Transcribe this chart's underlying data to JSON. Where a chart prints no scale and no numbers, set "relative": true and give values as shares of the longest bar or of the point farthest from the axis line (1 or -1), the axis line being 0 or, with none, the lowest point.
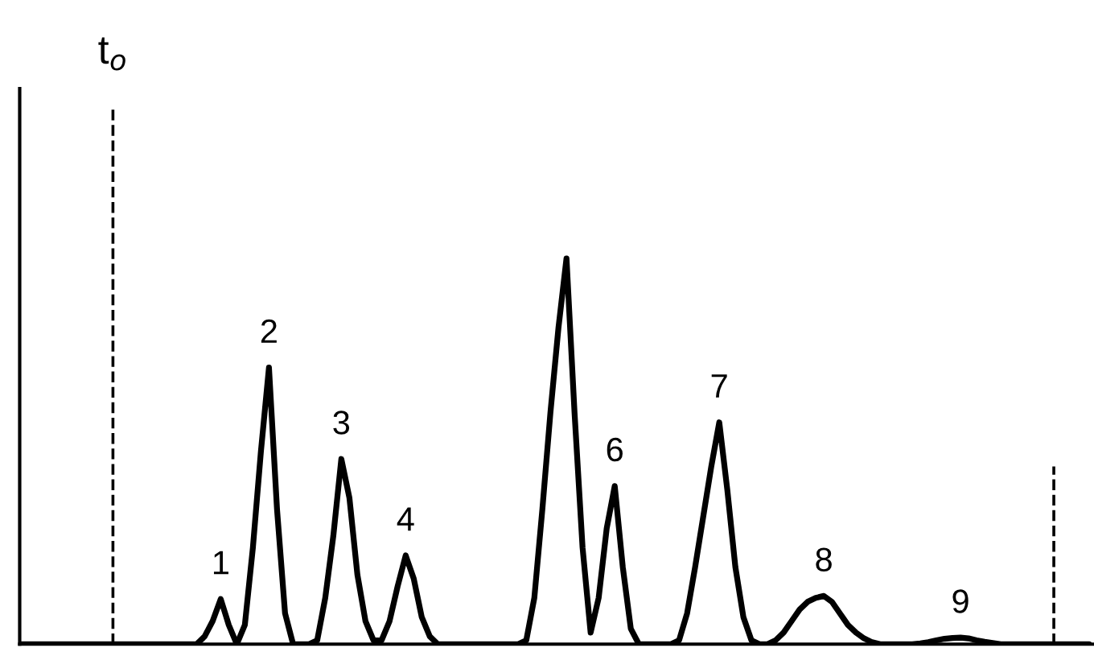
{
  "chart_data": {
    "type": "line",
    "relative": true,
    "legend": false,
    "marker": "none",
    "line_style": "solid",
    "categories": [
      null,
      null,
      null,
      null,
      null,
      null,
      null,
      null,
      null,
      null,
      null,
      null,
      null,
      null,
      null,
      null,
      null,
      null,
      null,
      null,
      null,
      null,
      null,
      null,
      null,
      null,
      null,
      null,
      null,
      null,
      null,
      null,
      null,
      null,
      null,
      null,
      null,
      null,
      null,
      null,
      null,
      null,
      null,
      null,
      null,
      null,
      null,
      null,
      null,
      null,
      null,
      null,
      null,
      null,
      null,
      null,
      null,
      null,
      null,
      null,
      null,
      null,
      null,
      null,
      null,
      null,
      null,
      null,
      null,
      null,
      null,
      null,
      null,
      null,
      null,
      null,
      null,
      null,
      null,
      null,
      null,
      null,
      null,
      null,
      null,
      null,
      null,
      null,
      null,
      null,
      null,
      null,
      null,
      null,
      null,
      null,
      null,
      null,
      null,
      null,
      null,
      null,
      null,
      null,
      null,
      null,
      null,
      null,
      null,
      null,
      null,
      null,
      null,
      null,
      null,
      null,
      null,
      null,
      null,
      null,
      null,
      null,
      null,
      null,
      null,
      null,
      null,
      null,
      null,
      null,
      null,
      null,
      null,
      null
    ],
    "series": [
      {
        "color": "#000000",
        "values": [
          0,
          0,
          0,
          0,
          0,
          0,
          0,
          0,
          0,
          0,
          0,
          0,
          0,
          0,
          0,
          0,
          0,
          0,
          0,
          0,
          0,
          0,
          0,
          0.02,
          0.06,
          0.117,
          0.05,
          0,
          0.05,
          0.25,
          0.5,
          0.717,
          0.35,
          0.08,
          0,
          0,
          0,
          0.01,
          0.12,
          0.28,
          0.48,
          0.38,
          0.18,
          0.06,
          0.01,
          0.01,
          0.06,
          0.15,
          0.23,
          0.17,
          0.07,
          0.02,
          0,
          0,
          0,
          0,
          0,
          0,
          0,
          0,
          0,
          0,
          0,
          0.01,
          0.12,
          0.35,
          0.6,
          0.82,
          1.0,
          0.6,
          0.25,
          0.03,
          0.12,
          0.3,
          0.41,
          0.2,
          0.04,
          0,
          0,
          0,
          0,
          0,
          0.01,
          0.08,
          0.2,
          0.33,
          0.46,
          0.575,
          0.4,
          0.2,
          0.07,
          0.01,
          0,
          0,
          0.01,
          0.03,
          0.06,
          0.09,
          0.11,
          0.12,
          0.125,
          0.11,
          0.08,
          0.05,
          0.03,
          0.015,
          0.005,
          0,
          0,
          0,
          0,
          0,
          0.002,
          0.005,
          0.01,
          0.014,
          0.016,
          0.017,
          0.015,
          0.01,
          0.006,
          0.003,
          0,
          0,
          0,
          0,
          0,
          0,
          0,
          0,
          0,
          0,
          0,
          0
        ]
      }
    ],
    "annotations": [
      "t$_{o}$",
      {
        "text": "1",
        "y": 0.117
      },
      {
        "text": "2",
        "y": 0.717
      },
      {
        "text": "3",
        "y": 0.48
      },
      {
        "text": "4",
        "y": 0.23
      },
      {
        "text": "6",
        "y": 0.41
      },
      {
        "text": "7",
        "y": 0.575
      },
      {
        "text": "8",
        "y": 0.125
      },
      {
        "text": "9",
        "y": 0.017
      }
    ]
  }
}
